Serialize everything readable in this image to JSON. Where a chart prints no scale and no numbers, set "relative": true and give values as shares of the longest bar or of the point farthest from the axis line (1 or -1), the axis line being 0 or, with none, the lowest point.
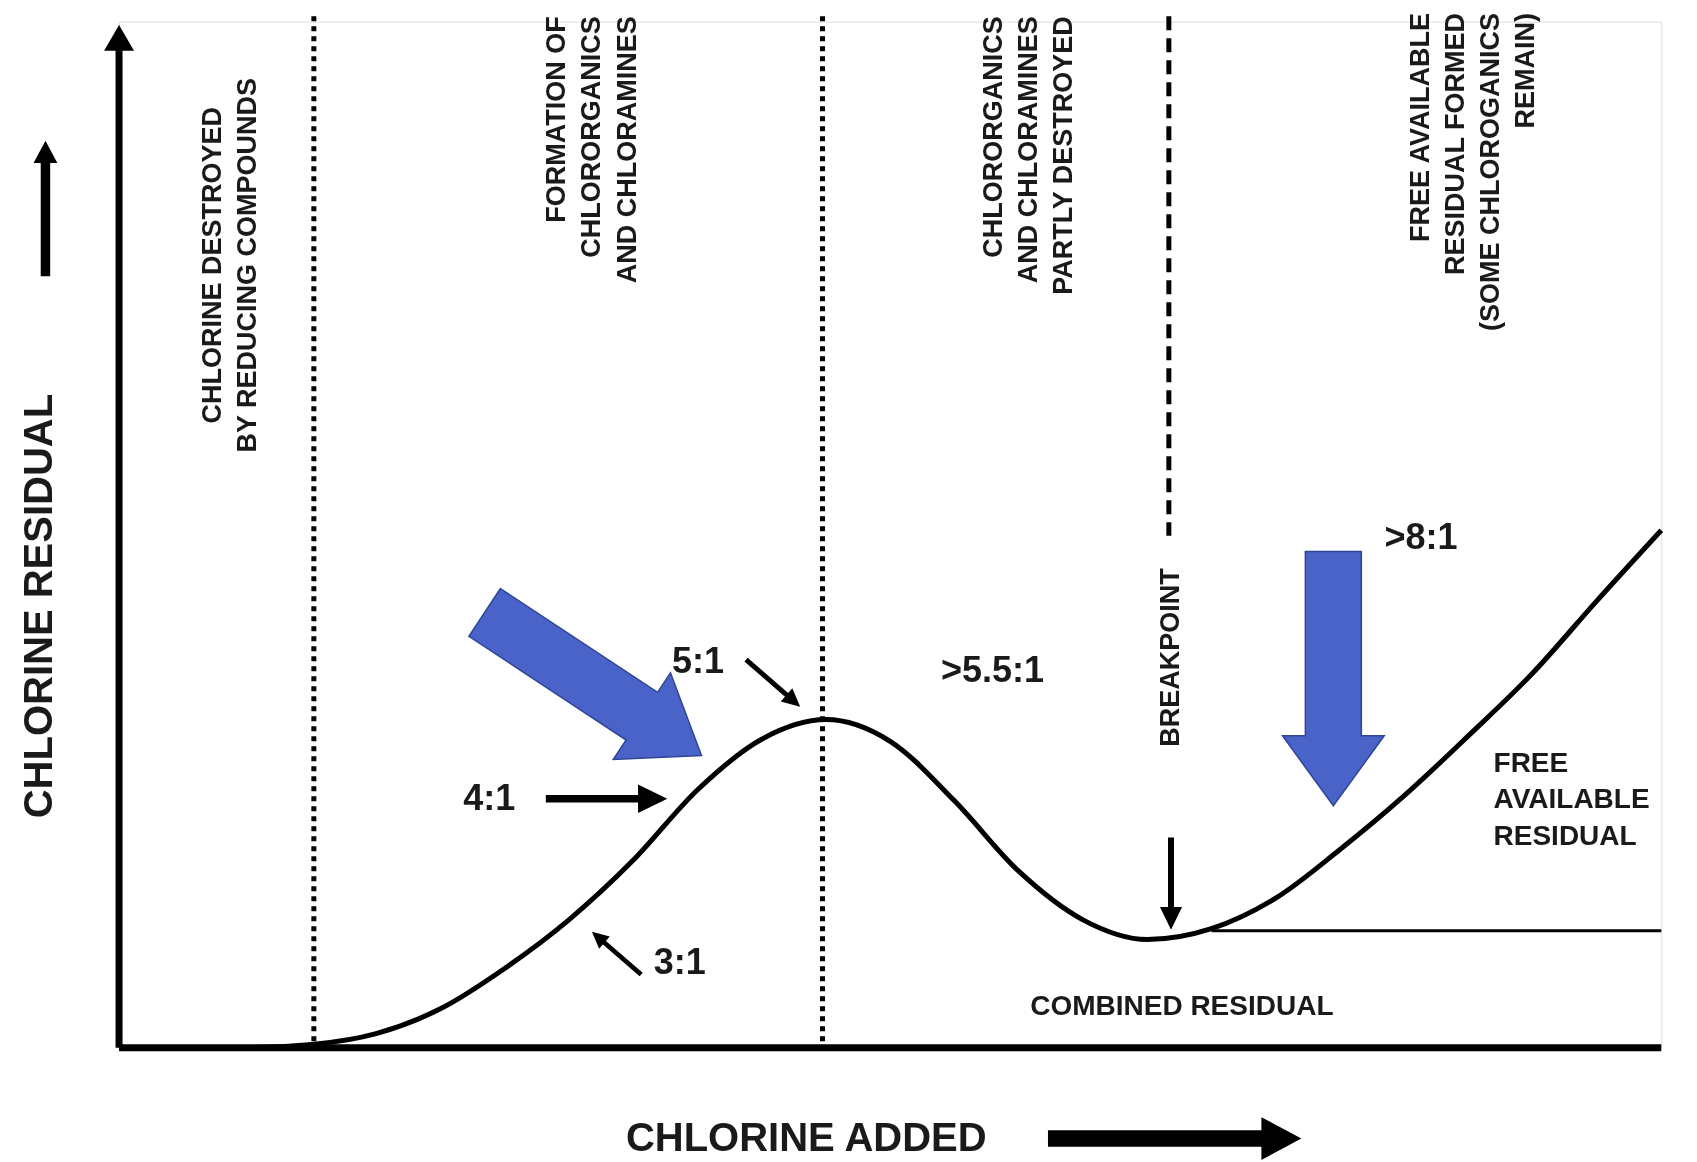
{
  "chart_data": {
    "type": "line",
    "relative": true,
    "xlabel": "CHLORINE ADDED",
    "ylabel": "CHLORINE RESIDUAL",
    "categories": [
      null,
      null,
      null,
      null,
      null,
      null,
      null,
      null,
      null,
      null,
      null,
      null,
      null,
      null,
      null,
      null,
      null,
      null,
      null,
      null,
      null,
      null,
      null,
      null,
      null
    ],
    "series": [
      {
        "color": "#000000",
        "values": [
          0,
          0,
          0,
          0.006,
          0.027,
          0.075,
          0.153,
          0.247,
          0.362,
          0.498,
          0.596,
          0.634,
          0.592,
          0.477,
          0.341,
          0.247,
          0.209,
          0.23,
          0.289,
          0.383,
          0.487,
          0.603,
          0.724,
          0.864,
          1
        ]
      },
      {
        "type": "line",
        "color": "#000000",
        "values": [
          null,
          null,
          null,
          null,
          null,
          null,
          null,
          null,
          null,
          null,
          null,
          null,
          null,
          null,
          null,
          null,
          null,
          0.226,
          0.226,
          0.226,
          0.226,
          0.226,
          0.226,
          0.226,
          0.226
        ]
      }
    ],
    "annotations": [
      "CHLORINE DESTROYED\nBY REDUCING COMPOUNDS",
      "FORMATION OF\nCHLORORGANICS\nAND CHLORAMINES",
      "CHLORORGANICS\nAND CHLORAMINES\nPARTLY DESTROYED",
      "FREE AVAILABLE\nRESIDUAL FORMED\n(SOME CHLOROGANICS\nREMAIN)",
      "BREAKPOINT",
      "5:1",
      "4:1",
      "3:1",
      ">5.5:1",
      ">8:1",
      "FREE\nAVAILABLE\nRESIDUAL",
      "COMBINED RESIDUAL"
    ],
    "marker": "none",
    "line_style": "solid"
  }
}
